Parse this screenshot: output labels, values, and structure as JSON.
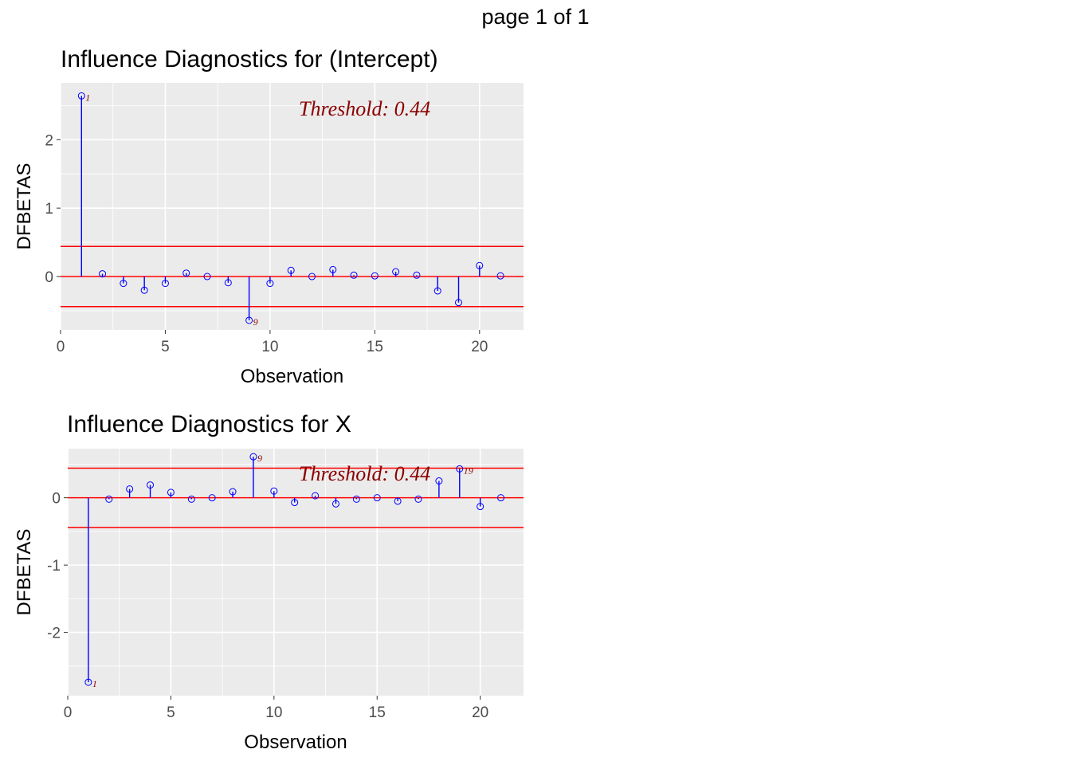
{
  "page": {
    "header": "page 1 of 1"
  },
  "chart_data": [
    {
      "type": "scatter",
      "title": "Influence Diagnostics for (Intercept)",
      "xlabel": "Observation",
      "ylabel": "DFBETAS",
      "threshold_label": "Threshold: 0.44",
      "threshold": 0.44,
      "xlim": [
        0,
        22.1
      ],
      "ylim": [
        -0.78,
        2.83
      ],
      "x_ticks": [
        0,
        5,
        10,
        15,
        20
      ],
      "y_ticks": [
        0,
        1,
        2
      ],
      "x": [
        1,
        2,
        3,
        4,
        5,
        6,
        7,
        8,
        9,
        10,
        11,
        12,
        13,
        14,
        15,
        16,
        17,
        18,
        19,
        20,
        21
      ],
      "values": [
        2.64,
        0.04,
        -0.1,
        -0.2,
        -0.1,
        0.05,
        0.0,
        -0.09,
        -0.64,
        -0.1,
        0.09,
        0.0,
        0.1,
        0.02,
        0.01,
        0.07,
        0.02,
        -0.21,
        -0.38,
        0.16,
        0.01
      ],
      "labeled_points": [
        {
          "x": 1,
          "label": "1"
        },
        {
          "x": 9,
          "label": "9"
        }
      ],
      "colors": {
        "stem": "#0000ff",
        "threshold": "#ff0000",
        "label": "#8b0000"
      }
    },
    {
      "type": "scatter",
      "title": "Influence Diagnostics for X",
      "xlabel": "Observation",
      "ylabel": "DFBETAS",
      "threshold_label": "Threshold: 0.44",
      "threshold": 0.44,
      "xlim": [
        0,
        22.1
      ],
      "ylim": [
        -2.94,
        0.73
      ],
      "x_ticks": [
        0,
        5,
        10,
        15,
        20
      ],
      "y_ticks": [
        -2,
        -1,
        0
      ],
      "x": [
        1,
        2,
        3,
        4,
        5,
        6,
        7,
        8,
        9,
        10,
        11,
        12,
        13,
        14,
        15,
        16,
        17,
        18,
        19,
        20,
        21
      ],
      "values": [
        -2.74,
        -0.02,
        0.13,
        0.19,
        0.08,
        -0.02,
        0.0,
        0.09,
        0.61,
        0.1,
        -0.07,
        0.03,
        -0.09,
        -0.02,
        0.0,
        -0.05,
        -0.02,
        0.25,
        0.43,
        -0.13,
        0.0
      ],
      "labeled_points": [
        {
          "x": 1,
          "label": "1"
        },
        {
          "x": 9,
          "label": "9"
        },
        {
          "x": 19,
          "label": "19"
        }
      ],
      "colors": {
        "stem": "#0000ff",
        "threshold": "#ff0000",
        "label": "#8b0000"
      }
    }
  ]
}
